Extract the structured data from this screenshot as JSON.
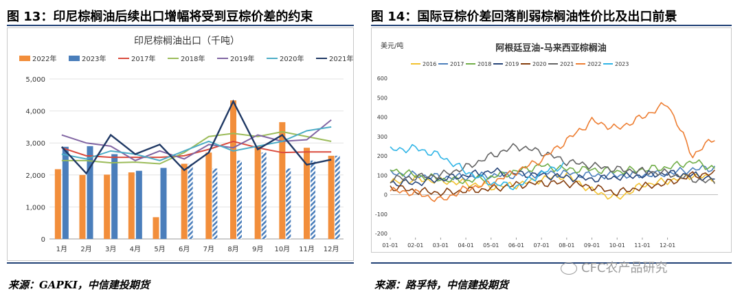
{
  "left_panel": {
    "figure_title": "图 13：印尼棕榈油后续出口增幅将受到豆棕价差的约束",
    "source": "来源：GAPKI，中信建投期货"
  },
  "right_panel": {
    "figure_title": "图 14：国际豆棕价差回落削弱棕榈油性价比及出口前景",
    "source": "来源：路孚特，中信建投期货"
  },
  "watermark": "CFC农产品研究",
  "chart_data": [
    {
      "type": "bar",
      "title": "印尼棕榈油出口（千吨）",
      "categories": [
        "1月",
        "2月",
        "3月",
        "4月",
        "5月",
        "6月",
        "7月",
        "8月",
        "9月",
        "10月",
        "11月",
        "12月"
      ],
      "ylim": [
        0,
        5000
      ],
      "yticks": [
        "0",
        "1,000",
        "2,000",
        "3,000",
        "4,000",
        "5,000"
      ],
      "grid": true,
      "legend": "top",
      "bar_series": [
        {
          "name": "2022年",
          "color": "#f28e3b",
          "values": [
            2180,
            2000,
            2010,
            2080,
            680,
            2350,
            2700,
            4330,
            2900,
            3650,
            2850,
            2600
          ],
          "hatched_from_index": 5
        },
        {
          "name": "2023年",
          "color": "#4a7ebb",
          "values": [
            2880,
            2900,
            2650,
            2130,
            2220,
            null,
            null,
            null,
            null,
            null,
            null,
            null
          ]
        }
      ],
      "line_series": [
        {
          "name": "2017年",
          "color": "#d94a3d",
          "values": [
            2850,
            2600,
            2550,
            2550,
            2550,
            2600,
            2800,
            3050,
            2850,
            2700,
            2720,
            2720
          ]
        },
        {
          "name": "2018年",
          "color": "#9bbb59",
          "values": [
            2450,
            2450,
            2380,
            2400,
            2350,
            2700,
            3200,
            3300,
            3200,
            3350,
            3200,
            3050
          ]
        },
        {
          "name": "2019年",
          "color": "#8064a2",
          "values": [
            3250,
            3000,
            2900,
            2450,
            2750,
            2500,
            2950,
            2850,
            3250,
            3050,
            3100,
            3720
          ]
        },
        {
          "name": "2020年",
          "color": "#4bacc6",
          "values": [
            2650,
            2500,
            2750,
            2650,
            2450,
            2750,
            3050,
            2750,
            2900,
            3050,
            3380,
            3500
          ]
        },
        {
          "name": "2021年",
          "color": "#1f3864",
          "values": [
            2880,
            2050,
            3250,
            2650,
            2950,
            2150,
            2700,
            4300,
            2800,
            3250,
            2320,
            2480
          ]
        }
      ]
    },
    {
      "type": "line",
      "title": "阿根廷豆油-马来西亚棕榈油",
      "ylabel": "美元/吨",
      "x_ticks": [
        "01-01",
        "02-01",
        "03-01",
        "04-01",
        "05-01",
        "06-01",
        "07-01",
        "08-01",
        "09-01",
        "10-01",
        "11-01",
        "12-01"
      ],
      "ylim": [
        -200,
        600
      ],
      "yticks": [
        "-200",
        "-100",
        "0",
        "100",
        "200",
        "300",
        "400",
        "500",
        "600"
      ],
      "grid": false,
      "legend": "top",
      "series": [
        {
          "name": "2016",
          "color": "#f2c12e",
          "values": [
            60,
            80,
            70,
            60,
            40,
            50,
            80,
            100,
            20,
            -20,
            50,
            70,
            100,
            80
          ]
        },
        {
          "name": "2017",
          "color": "#4a7ebb",
          "values": [
            110,
            100,
            90,
            90,
            100,
            100,
            110,
            110,
            100,
            100,
            100,
            110,
            130,
            140
          ]
        },
        {
          "name": "2018",
          "color": "#70ad47",
          "values": [
            130,
            100,
            80,
            70,
            90,
            120,
            150,
            130,
            130,
            120,
            130,
            140,
            170,
            130
          ]
        },
        {
          "name": "2019",
          "color": "#264478",
          "values": [
            60,
            60,
            80,
            100,
            120,
            110,
            100,
            90,
            80,
            90,
            100,
            110,
            100,
            80
          ]
        },
        {
          "name": "2020",
          "color": "#843c0c",
          "values": [
            40,
            20,
            10,
            20,
            30,
            50,
            60,
            60,
            40,
            10,
            40,
            60,
            100,
            110
          ]
        },
        {
          "name": "2021",
          "color": "#636363",
          "values": [
            80,
            90,
            100,
            140,
            200,
            250,
            220,
            170,
            150,
            130,
            120,
            110,
            80,
            60
          ]
        },
        {
          "name": "2022",
          "color": "#ed7d31",
          "values": [
            20,
            10,
            -30,
            30,
            60,
            120,
            180,
            280,
            380,
            340,
            400,
            470,
            200,
            310
          ]
        },
        {
          "name": "2023",
          "color": "#2eb4e6",
          "values": [
            230,
            240,
            200,
            120,
            60,
            40,
            110,
            160,
            null,
            null,
            null,
            null,
            null,
            null
          ]
        }
      ]
    }
  ]
}
